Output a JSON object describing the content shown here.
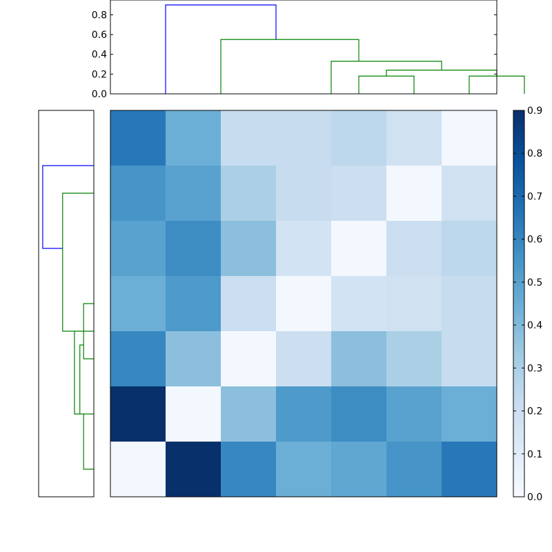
{
  "chart_data": [
    {
      "type": "dendrogram",
      "orientation": "top",
      "ylim": [
        0,
        0.95
      ],
      "yticks": [
        "0.0",
        "0.2",
        "0.4",
        "0.6",
        "0.8"
      ],
      "ytick_values": [
        0,
        0.2,
        0.4,
        0.6,
        0.8
      ],
      "leaf_count": 7,
      "links": [
        {
          "left": 1.5,
          "right": 3.5,
          "height": 0.9,
          "color": "#0000ff",
          "left_base": 0,
          "right_base": 0.55
        },
        {
          "left": 2.5,
          "right": 5,
          "height": 0.55,
          "color": "#008000",
          "left_base": 0,
          "right_base": 0.33
        },
        {
          "left": 4.5,
          "right": 6.5,
          "height": 0.33,
          "color": "#008000",
          "left_base": 0,
          "right_base": 0.24
        },
        {
          "left": 5.5,
          "right": 7.5,
          "height": 0.24,
          "color": "#008000",
          "left_base": 0.18,
          "right_base": 0.18
        },
        {
          "left": 5,
          "right": 6,
          "height": 0.18,
          "color": "#008000",
          "left_base": 0,
          "right_base": 0
        },
        {
          "left": 7,
          "right": 8,
          "height": 0.18,
          "color": "#008000",
          "left_base": 0,
          "right_base": 0
        }
      ]
    },
    {
      "type": "dendrogram",
      "orientation": "left",
      "leaf_count": 7,
      "links": [
        {
          "from_leaf": 1.5,
          "to_leaf": 3,
          "depth": 0.95,
          "color": "#0000ff",
          "base_a": 0,
          "base_b": 0.58
        },
        {
          "from_leaf": 2,
          "to_leaf": 4.5,
          "depth": 0.58,
          "color": "#008000",
          "base_a": 0,
          "base_b": 0.36
        },
        {
          "from_leaf": 4.5,
          "to_leaf": 6,
          "depth": 0.36,
          "color": "#008000",
          "base_a": 0,
          "base_b": 0.26
        },
        {
          "from_leaf": 4.75,
          "to_leaf": 6,
          "depth": 0.26,
          "color": "#008000",
          "base_a": 0.19,
          "base_b": 0.19
        },
        {
          "from_leaf": 4,
          "to_leaf": 5,
          "depth": 0.19,
          "color": "#008000",
          "base_a": 0,
          "base_b": 0
        },
        {
          "from_leaf": 6,
          "to_leaf": 7,
          "depth": 0.19,
          "color": "#008000",
          "base_a": 0,
          "base_b": 0
        }
      ]
    },
    {
      "type": "heatmap",
      "colormap": "Blues",
      "vmin": 0,
      "vmax": 0.9,
      "values": [
        [
          0.65,
          0.45,
          0.22,
          0.22,
          0.25,
          0.18,
          0.02
        ],
        [
          0.55,
          0.5,
          0.3,
          0.22,
          0.2,
          0.02,
          0.18
        ],
        [
          0.5,
          0.58,
          0.38,
          0.17,
          0.02,
          0.2,
          0.25
        ],
        [
          0.45,
          0.53,
          0.2,
          0.02,
          0.17,
          0.18,
          0.22
        ],
        [
          0.6,
          0.38,
          0.02,
          0.2,
          0.38,
          0.3,
          0.22
        ],
        [
          0.9,
          0.02,
          0.38,
          0.53,
          0.58,
          0.5,
          0.45
        ],
        [
          0.02,
          0.9,
          0.6,
          0.45,
          0.48,
          0.55,
          0.65
        ]
      ],
      "colorbar": {
        "ticks": [
          "0.0",
          "0.1",
          "0.2",
          "0.3",
          "0.4",
          "0.5",
          "0.6",
          "0.7",
          "0.8",
          "0.9"
        ],
        "tick_values": [
          0,
          0.1,
          0.2,
          0.3,
          0.4,
          0.5,
          0.6,
          0.7,
          0.8,
          0.9
        ]
      }
    }
  ]
}
